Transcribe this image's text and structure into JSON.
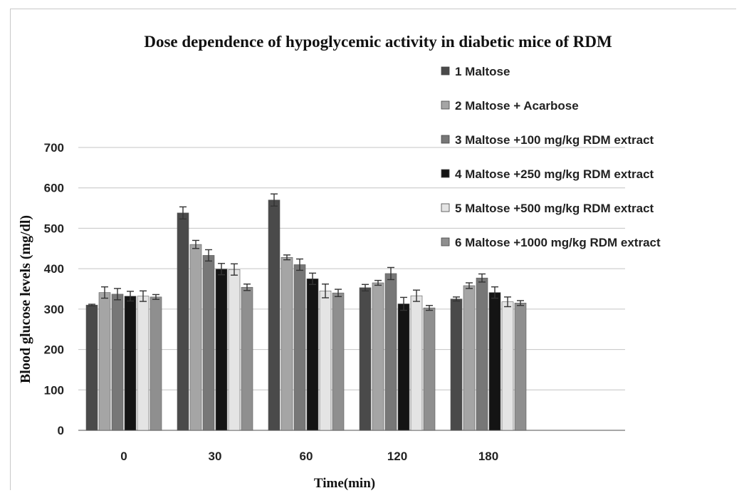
{
  "chart_data": {
    "type": "bar",
    "title": "Dose dependence of hypoglycemic activity in diabetic mice of RDM",
    "xlabel": "Time(min)",
    "ylabel": "Blood glucose levels (mg/dl)",
    "ylim": [
      0,
      700
    ],
    "yticks": [
      "0",
      "100",
      "200",
      "300",
      "400",
      "500",
      "600",
      "700"
    ],
    "categories": [
      "0",
      "30",
      "60",
      "120",
      "180"
    ],
    "grid": true,
    "legend_position": "top-right",
    "series": [
      {
        "name": "1 Maltose",
        "color": "#4a4a4a",
        "values": [
          310,
          538,
          570,
          353,
          325
        ],
        "errors": [
          2,
          15,
          15,
          8,
          5
        ]
      },
      {
        "name": "2 Maltose + Acarbose",
        "color": "#a5a5a5",
        "values": [
          341,
          460,
          428,
          365,
          358
        ],
        "errors": [
          14,
          10,
          6,
          6,
          7
        ]
      },
      {
        "name": "3 Maltose +100 mg/kg RDM extract",
        "color": "#777777",
        "values": [
          337,
          433,
          410,
          388,
          377
        ],
        "errors": [
          14,
          14,
          14,
          15,
          10
        ]
      },
      {
        "name": "4 Maltose +250 mg/kg RDM extract",
        "color": "#141414",
        "values": [
          332,
          399,
          375,
          313,
          341
        ],
        "errors": [
          12,
          14,
          14,
          16,
          14
        ]
      },
      {
        "name": "5 Maltose +500 mg/kg RDM extract",
        "color": "#e4e4e4",
        "values": [
          332,
          398,
          345,
          333,
          318
        ],
        "errors": [
          13,
          14,
          17,
          14,
          12
        ]
      },
      {
        "name": "6 Maltose +1000 mg/kg RDM extract",
        "color": "#8f8f8f",
        "values": [
          330,
          354,
          340,
          303,
          315
        ],
        "errors": [
          6,
          8,
          9,
          6,
          6
        ]
      }
    ]
  }
}
